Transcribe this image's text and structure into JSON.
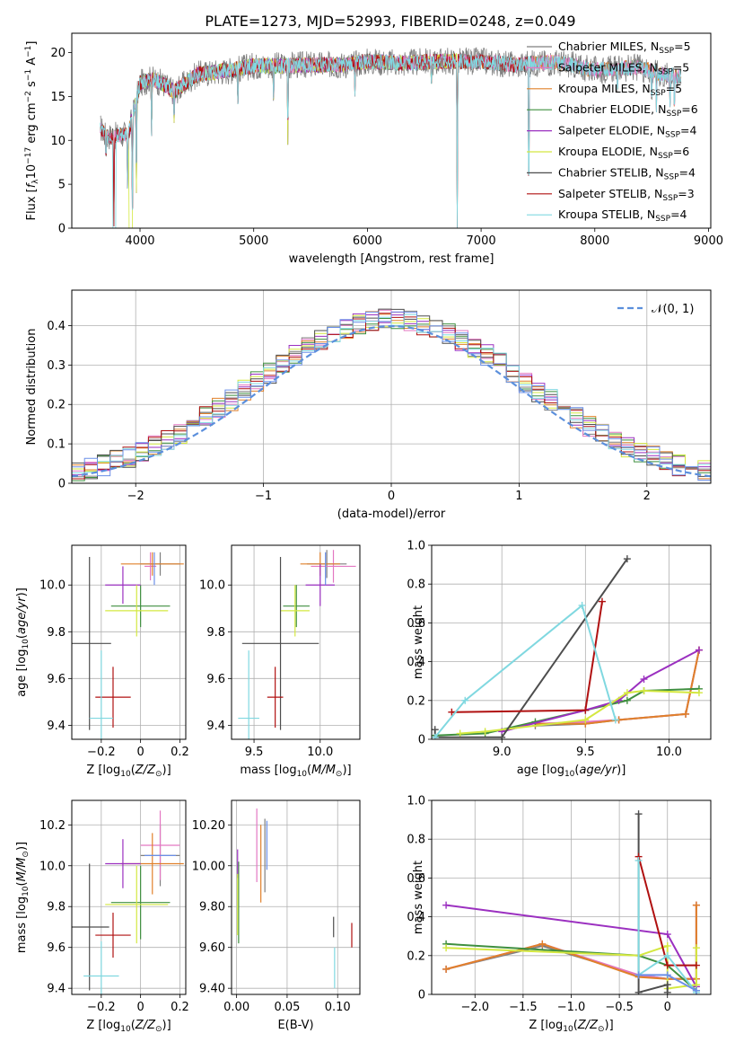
{
  "figure": {
    "title": "PLATE=1273, MJD=52993, FIBERID=0248, z=0.049"
  },
  "model_colors": {
    "Chabrier MILES": "#7f7f7f",
    "Salpeter MILES": "#e377c2",
    "Kroupa MILES": "#e0802a",
    "Chabrier ELODIE": "#3f8f3f",
    "Salpeter ELODIE": "#9b30c0",
    "Kroupa ELODIE": "#d4e840",
    "Chabrier STELIB": "#4d4d4d",
    "Salpeter STELIB": "#b01010",
    "Kroupa STELIB": "#80d8e0",
    "Blue extra": "#6b8fe8",
    "Normal curve": "#5b8fdc"
  },
  "chart_data": [
    {
      "id": "spectrum",
      "type": "line",
      "xlabel": "wavelength [Angstrom, rest frame]",
      "ylabel": "Flux [f_λ10^-17 erg cm^-2 s^-1 A^-1]",
      "xlim": [
        3400,
        9020
      ],
      "ylim": [
        0,
        22.2
      ],
      "xticks": [
        4000,
        5000,
        6000,
        7000,
        8000,
        9000
      ],
      "yticks": [
        0,
        5,
        10,
        15,
        20
      ],
      "grid": false,
      "legend_placement": "top-right",
      "series": [
        {
          "name": "Chabrier MILES",
          "nssp": 5,
          "color_key": "Chabrier MILES"
        },
        {
          "name": "Salpeter MILES",
          "nssp": 5,
          "color_key": "Salpeter MILES"
        },
        {
          "name": "Kroupa MILES",
          "nssp": 5,
          "color_key": "Kroupa MILES"
        },
        {
          "name": "Chabrier ELODIE",
          "nssp": 6,
          "color_key": "Chabrier ELODIE"
        },
        {
          "name": "Salpeter ELODIE",
          "nssp": 4,
          "color_key": "Salpeter ELODIE"
        },
        {
          "name": "Kroupa ELODIE",
          "nssp": 6,
          "color_key": "Kroupa ELODIE"
        },
        {
          "name": "Chabrier STELIB",
          "nssp": 4,
          "color_key": "Chabrier STELIB"
        },
        {
          "name": "Salpeter STELIB",
          "nssp": 3,
          "color_key": "Salpeter STELIB"
        },
        {
          "name": "Kroupa STELIB",
          "nssp": 4,
          "color_key": "Kroupa STELIB"
        }
      ],
      "continuum": {
        "x": [
          3650,
          3700,
          3800,
          3900,
          4000,
          4100,
          4200,
          4300,
          4500,
          4800,
          5000,
          5200,
          5500,
          5800,
          6000,
          6300,
          6600,
          7000,
          7300,
          7600,
          7800,
          8000,
          8200,
          8400,
          8600,
          8760
        ],
        "y": [
          11.5,
          10.5,
          10.5,
          10.8,
          16.5,
          17.0,
          16.5,
          15.5,
          17.5,
          18.0,
          18.5,
          18.5,
          18.6,
          18.6,
          19.0,
          18.8,
          19.0,
          19.0,
          18.6,
          18.9,
          18.6,
          18.0,
          18.2,
          18.3,
          17.5,
          17.3
        ]
      },
      "absorption_lines": [
        {
          "x": 3700,
          "flux": 7.5
        },
        {
          "x": 3770,
          "flux": 0.2
        },
        {
          "x": 3890,
          "flux": 4.5
        },
        {
          "x": 3933,
          "flux": 0.1
        },
        {
          "x": 3968,
          "flux": 4.0
        },
        {
          "x": 4102,
          "flux": 10.5
        },
        {
          "x": 4300,
          "flux": 12.0
        },
        {
          "x": 4861,
          "flux": 13.5
        },
        {
          "x": 5175,
          "flux": 14.0
        },
        {
          "x": 5300,
          "flux": 9.5
        },
        {
          "x": 5890,
          "flux": 15.0
        },
        {
          "x": 6563,
          "flux": 16.0
        },
        {
          "x": 6790,
          "flux": 0.0
        },
        {
          "x": 7420,
          "flux": 0.0
        },
        {
          "x": 8200,
          "flux": 15.0
        },
        {
          "x": 8500,
          "flux": 13.5
        },
        {
          "x": 8542,
          "flux": 13.2
        },
        {
          "x": 8662,
          "flux": 13.8
        },
        {
          "x": 8700,
          "flux": 12.5
        }
      ]
    },
    {
      "id": "residual_hist",
      "type": "line",
      "xlabel": "(data-model)/error",
      "ylabel": "Normed distribution",
      "xlim": [
        -2.5,
        2.5
      ],
      "ylim": [
        0,
        0.49
      ],
      "xticks": [
        -2,
        -1,
        0,
        1,
        2
      ],
      "yticks": [
        0.0,
        0.1,
        0.2,
        0.3,
        0.4
      ],
      "grid": true,
      "legend_placement": "top-right",
      "legend": [
        {
          "name": "𝒩(0, 1)",
          "color_key": "Normal curve",
          "dashed": true
        }
      ],
      "bin_width": 0.1
    },
    {
      "id": "age_vs_Z",
      "type": "scatter",
      "xlabel": "Z [log10(Z/Z⊙)]",
      "ylabel": "age [log10(age/yr)]",
      "xlim": [
        -0.35,
        0.23
      ],
      "ylim": [
        9.34,
        10.17
      ],
      "xticks": [
        -0.2,
        0.0,
        0.2
      ],
      "yticks": [
        9.4,
        9.6,
        9.8,
        10.0
      ],
      "grid": true,
      "points": [
        {
          "color_key": "Chabrier MILES",
          "x": 0.1,
          "xerr": 0.1,
          "y": 10.09,
          "yerr": 0.05
        },
        {
          "color_key": "Salpeter MILES",
          "x": 0.05,
          "xerr": 0.03,
          "y": 10.08,
          "yerr": 0.06
        },
        {
          "color_key": "Kroupa MILES",
          "x": 0.06,
          "xerr": 0.16,
          "y": 10.09,
          "yerr": 0.05
        },
        {
          "color_key": "Chabrier ELODIE",
          "x": 0.0,
          "xerr": 0.15,
          "y": 9.91,
          "yerr": 0.09
        },
        {
          "color_key": "Salpeter ELODIE",
          "x": -0.09,
          "xerr": 0.09,
          "y": 10.0,
          "yerr": 0.08
        },
        {
          "color_key": "Kroupa ELODIE",
          "x": -0.02,
          "xerr": 0.16,
          "y": 9.89,
          "yerr": 0.11
        },
        {
          "color_key": "Chabrier STELIB",
          "x": -0.26,
          "xerr": 0.11,
          "y": 9.75,
          "yerr": 0.37
        },
        {
          "color_key": "Salpeter STELIB",
          "x": -0.14,
          "xerr": 0.09,
          "y": 9.52,
          "yerr": 0.13
        },
        {
          "color_key": "Kroupa STELIB",
          "x": -0.2,
          "xerr": 0.06,
          "y": 9.43,
          "yerr": 0.29
        },
        {
          "color_key": "Blue extra",
          "x": 0.07,
          "xerr": 0.0,
          "y": 10.07,
          "yerr": 0.07
        }
      ]
    },
    {
      "id": "age_vs_mass",
      "type": "scatter",
      "xlabel": "mass [log10(M/M⊙)]",
      "ylabel": "",
      "xlim": [
        9.33,
        10.3
      ],
      "ylim": [
        9.34,
        10.17
      ],
      "xticks": [
        9.5,
        10.0
      ],
      "yticks": [
        9.4,
        9.6,
        9.8,
        10.0
      ],
      "grid": true,
      "points": [
        {
          "color_key": "Chabrier MILES",
          "x": 10.05,
          "xerr": 0.15,
          "y": 10.09,
          "yerr": 0.06
        },
        {
          "color_key": "Salpeter MILES",
          "x": 10.1,
          "xerr": 0.17,
          "y": 10.08,
          "yerr": 0.07
        },
        {
          "color_key": "Kroupa MILES",
          "x": 10.0,
          "xerr": 0.15,
          "y": 10.09,
          "yerr": 0.05
        },
        {
          "color_key": "Chabrier ELODIE",
          "x": 9.82,
          "xerr": 0.1,
          "y": 9.91,
          "yerr": 0.09
        },
        {
          "color_key": "Salpeter ELODIE",
          "x": 10.0,
          "xerr": 0.11,
          "y": 10.0,
          "yerr": 0.09
        },
        {
          "color_key": "Kroupa ELODIE",
          "x": 9.81,
          "xerr": 0.11,
          "y": 9.89,
          "yerr": 0.11
        },
        {
          "color_key": "Chabrier STELIB",
          "x": 9.7,
          "xerr": 0.29,
          "y": 9.75,
          "yerr": 0.37
        },
        {
          "color_key": "Salpeter STELIB",
          "x": 9.66,
          "xerr": 0.06,
          "y": 9.52,
          "yerr": 0.13
        },
        {
          "color_key": "Kroupa STELIB",
          "x": 9.46,
          "xerr": 0.08,
          "y": 9.43,
          "yerr": 0.29
        },
        {
          "color_key": "Blue extra",
          "x": 10.04,
          "xerr": 0.0,
          "y": 10.07,
          "yerr": 0.07
        }
      ]
    },
    {
      "id": "massweight_vs_age",
      "type": "line",
      "xlabel": "age [log10(age/yr)]",
      "ylabel": "mass weight",
      "xlim": [
        8.58,
        10.25
      ],
      "ylim": [
        0,
        1.0
      ],
      "xticks": [
        9.0,
        9.5,
        10.0
      ],
      "yticks": [
        0.0,
        0.2,
        0.4,
        0.6,
        0.8,
        1.0
      ],
      "grid": true,
      "series": [
        {
          "color_key": "Chabrier MILES",
          "x": [
            9.2,
            9.5,
            9.7,
            10.1,
            10.18
          ],
          "y": [
            0.07,
            0.08,
            0.1,
            0.13,
            0.46
          ]
        },
        {
          "color_key": "Salpeter MILES",
          "x": [
            9.2,
            9.5,
            9.7,
            10.1,
            10.18
          ],
          "y": [
            0.08,
            0.09,
            0.1,
            0.13,
            0.46
          ]
        },
        {
          "color_key": "Kroupa MILES",
          "x": [
            9.2,
            9.5,
            9.7,
            10.1,
            10.18
          ],
          "y": [
            0.08,
            0.08,
            0.1,
            0.13,
            0.46
          ]
        },
        {
          "color_key": "Chabrier ELODIE",
          "x": [
            8.6,
            8.9,
            9.2,
            9.5,
            9.75,
            9.85,
            10.18
          ],
          "y": [
            0.02,
            0.03,
            0.09,
            0.15,
            0.2,
            0.25,
            0.26
          ]
        },
        {
          "color_key": "Salpeter ELODIE",
          "x": [
            9.0,
            9.5,
            9.7,
            9.85,
            10.18
          ],
          "y": [
            0.04,
            0.15,
            0.2,
            0.31,
            0.46
          ]
        },
        {
          "color_key": "Kroupa ELODIE",
          "x": [
            8.75,
            8.9,
            9.5,
            9.75,
            9.85,
            10.18
          ],
          "y": [
            0.03,
            0.04,
            0.1,
            0.24,
            0.25,
            0.24
          ]
        },
        {
          "color_key": "Chabrier STELIB",
          "x": [
            8.6,
            8.6,
            9.0,
            9.75
          ],
          "y": [
            0.05,
            0.01,
            0.01,
            0.93
          ]
        },
        {
          "color_key": "Salpeter STELIB",
          "x": [
            8.7,
            9.5,
            9.6
          ],
          "y": [
            0.14,
            0.15,
            0.71
          ]
        },
        {
          "color_key": "Kroupa STELIB",
          "x": [
            8.6,
            8.78,
            9.48,
            9.68
          ],
          "y": [
            0.01,
            0.2,
            0.69,
            0.1
          ]
        }
      ]
    },
    {
      "id": "mass_vs_Z",
      "type": "scatter",
      "xlabel": "Z [log10(Z/Z⊙)]",
      "ylabel": "mass [log10(M/M⊙)]",
      "xlim": [
        -0.35,
        0.23
      ],
      "ylim": [
        9.37,
        10.32
      ],
      "xticks": [
        -0.2,
        0.0,
        0.2
      ],
      "yticks": [
        9.4,
        9.6,
        9.8,
        10.0,
        10.2
      ],
      "grid": true,
      "points": [
        {
          "color_key": "Chabrier MILES",
          "x": 0.1,
          "xerr": 0.1,
          "y": 10.05,
          "yerr": 0.15
        },
        {
          "color_key": "Salpeter MILES",
          "x": 0.1,
          "xerr": 0.1,
          "y": 10.1,
          "yerr": 0.17
        },
        {
          "color_key": "Kroupa MILES",
          "x": 0.06,
          "xerr": 0.16,
          "y": 10.01,
          "yerr": 0.15
        },
        {
          "color_key": "Chabrier ELODIE",
          "x": 0.0,
          "xerr": 0.15,
          "y": 9.82,
          "yerr": 0.18
        },
        {
          "color_key": "Salpeter ELODIE",
          "x": -0.09,
          "xerr": 0.09,
          "y": 10.01,
          "yerr": 0.12
        },
        {
          "color_key": "Kroupa ELODIE",
          "x": -0.02,
          "xerr": 0.16,
          "y": 9.81,
          "yerr": 0.19
        },
        {
          "color_key": "Chabrier STELIB",
          "x": -0.26,
          "xerr": 0.1,
          "y": 9.7,
          "yerr": 0.31
        },
        {
          "color_key": "Salpeter STELIB",
          "x": -0.14,
          "xerr": 0.09,
          "y": 9.66,
          "yerr": 0.11
        },
        {
          "color_key": "Kroupa STELIB",
          "x": -0.2,
          "xerr": 0.09,
          "y": 9.46,
          "yerr": 0.17
        },
        {
          "color_key": "Blue extra",
          "x": 0.1,
          "xerr": 0.08,
          "y": 10.05,
          "yerr": 0.0
        }
      ]
    },
    {
      "id": "mass_vs_EBV",
      "type": "scatter",
      "xlabel": "E(B-V)",
      "ylabel": "",
      "xlim": [
        -0.005,
        0.122
      ],
      "ylim": [
        9.37,
        10.32
      ],
      "xticks": [
        0.0,
        0.05,
        0.1
      ],
      "yticks": [
        9.4,
        9.6,
        9.8,
        10.0,
        10.2
      ],
      "grid": true,
      "points": [
        {
          "color_key": "Chabrier MILES",
          "x": 0.028,
          "xerr": 0,
          "y": 10.05,
          "yerr": 0.18
        },
        {
          "color_key": "Salpeter MILES",
          "x": 0.02,
          "xerr": 0,
          "y": 10.1,
          "yerr": 0.18
        },
        {
          "color_key": "Kroupa MILES",
          "x": 0.024,
          "xerr": 0,
          "y": 10.01,
          "yerr": 0.19
        },
        {
          "color_key": "Chabrier ELODIE",
          "x": 0.002,
          "xerr": 0,
          "y": 9.82,
          "yerr": 0.2
        },
        {
          "color_key": "Salpeter ELODIE",
          "x": 0.001,
          "xerr": 0,
          "y": 10.01,
          "yerr": 0.07
        },
        {
          "color_key": "Kroupa ELODIE",
          "x": 0.001,
          "xerr": 0,
          "y": 9.81,
          "yerr": 0.15
        },
        {
          "color_key": "Chabrier STELIB",
          "x": 0.096,
          "xerr": 0,
          "y": 9.7,
          "yerr": 0.05
        },
        {
          "color_key": "Salpeter STELIB",
          "x": 0.114,
          "xerr": 0,
          "y": 9.66,
          "yerr": 0.06
        },
        {
          "color_key": "Kroupa STELIB",
          "x": 0.097,
          "xerr": 0,
          "y": 9.5,
          "yerr": 0.1
        },
        {
          "color_key": "Blue extra",
          "x": 0.03,
          "xerr": 0,
          "y": 10.1,
          "yerr": 0.12
        }
      ]
    },
    {
      "id": "massweight_vs_Z",
      "type": "line",
      "xlabel": "Z [log10(Z/Z⊙)]",
      "ylabel": "mass weight",
      "xlim": [
        -2.45,
        0.45
      ],
      "ylim": [
        0,
        1.0
      ],
      "xticks": [
        -2.0,
        -1.5,
        -1.0,
        -0.5,
        0.0
      ],
      "yticks": [
        0.0,
        0.2,
        0.4,
        0.6,
        0.8,
        1.0
      ],
      "grid": true,
      "series": [
        {
          "color_key": "Chabrier MILES",
          "x": [
            -2.3,
            -1.3,
            -0.3,
            0.0,
            0.3,
            0.3
          ],
          "y": [
            0.13,
            0.25,
            0.1,
            0.08,
            0.08,
            0.46
          ]
        },
        {
          "color_key": "Salpeter MILES",
          "x": [
            -2.3,
            -1.3,
            -0.3,
            0.0,
            0.3,
            0.3
          ],
          "y": [
            0.13,
            0.26,
            0.1,
            0.08,
            0.08,
            0.46
          ]
        },
        {
          "color_key": "Kroupa MILES",
          "x": [
            -2.3,
            -1.3,
            -0.3,
            0.0,
            0.3,
            0.3
          ],
          "y": [
            0.13,
            0.26,
            0.09,
            0.08,
            0.08,
            0.46
          ]
        },
        {
          "color_key": "Chabrier ELODIE",
          "x": [
            -2.3,
            -0.3,
            0.0,
            0.3
          ],
          "y": [
            0.26,
            0.2,
            0.15,
            0.02
          ]
        },
        {
          "color_key": "Salpeter ELODIE",
          "x": [
            -2.3,
            0.0,
            0.3
          ],
          "y": [
            0.46,
            0.31,
            0.04
          ]
        },
        {
          "color_key": "Kroupa ELODIE",
          "x": [
            -2.3,
            -0.3,
            0.0,
            0.0,
            0.3,
            0.3
          ],
          "y": [
            0.24,
            0.2,
            0.25,
            0.03,
            0.05,
            0.24
          ]
        },
        {
          "color_key": "Chabrier STELIB",
          "x": [
            -0.3,
            -0.3,
            0.0,
            0.0
          ],
          "y": [
            0.93,
            0.01,
            0.05,
            0.01
          ]
        },
        {
          "color_key": "Salpeter STELIB",
          "x": [
            -0.3,
            0.0,
            0.3
          ],
          "y": [
            0.71,
            0.15,
            0.15
          ]
        },
        {
          "color_key": "Kroupa STELIB",
          "x": [
            -0.3,
            -0.3,
            0.0,
            0.3
          ],
          "y": [
            0.69,
            0.1,
            0.2,
            0.01
          ]
        },
        {
          "color_key": "Blue extra",
          "x": [
            -0.3,
            0.0,
            0.3
          ],
          "y": [
            0.1,
            0.1,
            0.02
          ]
        }
      ]
    }
  ]
}
